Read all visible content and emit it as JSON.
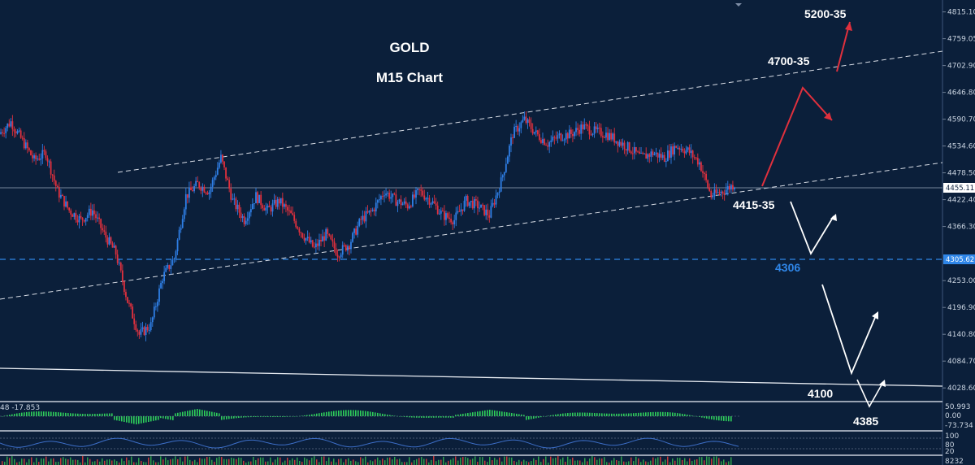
{
  "header": {
    "symbol": "GOLD",
    "timeframe": "M15 Chart"
  },
  "price_axis": {
    "ticks": [
      "4815.10",
      "4759.05",
      "4702.90",
      "4646.80",
      "4590.70",
      "4534.60",
      "4478.50",
      "4422.40",
      "4366.30",
      "4253.00",
      "4196.90",
      "4140.80",
      "4084.70",
      "4028.60"
    ],
    "current_price": "4455.11",
    "support_price": "4305.62"
  },
  "annotations": {
    "t5200": "5200-35",
    "t4700": "4700-35",
    "t4415": "4415-35",
    "t4306": "4306",
    "t4100": "4100",
    "t4385": "4385"
  },
  "indicator1": {
    "left_value": "48 -17.853",
    "scale": [
      "50.993",
      "0.00",
      "-73.734"
    ]
  },
  "indicator2": {
    "scale": [
      "100",
      "80",
      "20"
    ]
  },
  "indicator3": {
    "scale": [
      "8232"
    ]
  },
  "colors": {
    "background": "#0b1f3a",
    "bull_candle": "#2f7fe6",
    "bear_candle": "#e0303d",
    "bull_arrow": "#e0303d",
    "bear_arrow": "#ffffff",
    "support_line": "#2f86e8",
    "histogram": "#2ecf5a"
  },
  "chart_data": {
    "type": "candlestick",
    "title": "GOLD M15 Chart",
    "ylim": [
      4000,
      4840
    ],
    "close_path": [
      4560,
      4585,
      4545,
      4505,
      4520,
      4440,
      4400,
      4380,
      4400,
      4350,
      4310,
      4210,
      4140,
      4160,
      4260,
      4300,
      4430,
      4455,
      4440,
      4510,
      4420,
      4380,
      4430,
      4400,
      4420,
      4390,
      4350,
      4320,
      4350,
      4310,
      4330,
      4380,
      4400,
      4440,
      4420,
      4410,
      4440,
      4420,
      4390,
      4380,
      4420,
      4410,
      4390,
      4460,
      4560,
      4590,
      4560,
      4540,
      4555,
      4560,
      4575,
      4565,
      4560,
      4545,
      4530,
      4510,
      4520,
      4510,
      4535,
      4525,
      4500,
      4430,
      4440,
      4455
    ],
    "levels": [
      {
        "label": "4700-35",
        "value": 4718
      },
      {
        "label": "5200-35",
        "value": 4800
      },
      {
        "label": "4415-35",
        "value": 4415
      },
      {
        "label": "4306",
        "value": 4306
      },
      {
        "label": "4100",
        "value": 4084
      }
    ]
  }
}
